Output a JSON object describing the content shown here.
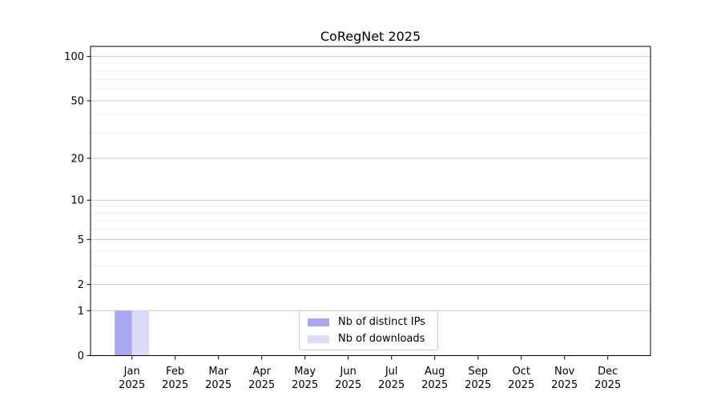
{
  "chart_data": {
    "type": "bar",
    "title": "CoRegNet 2025",
    "categories": [
      {
        "month": "Jan",
        "year": "2025"
      },
      {
        "month": "Feb",
        "year": "2025"
      },
      {
        "month": "Mar",
        "year": "2025"
      },
      {
        "month": "Apr",
        "year": "2025"
      },
      {
        "month": "May",
        "year": "2025"
      },
      {
        "month": "Jun",
        "year": "2025"
      },
      {
        "month": "Jul",
        "year": "2025"
      },
      {
        "month": "Aug",
        "year": "2025"
      },
      {
        "month": "Sep",
        "year": "2025"
      },
      {
        "month": "Oct",
        "year": "2025"
      },
      {
        "month": "Nov",
        "year": "2025"
      },
      {
        "month": "Dec",
        "year": "2025"
      }
    ],
    "series": [
      {
        "name": "Nb of distinct IPs",
        "color": "#a8a8f0",
        "values": [
          1,
          0,
          0,
          0,
          0,
          0,
          0,
          0,
          0,
          0,
          0,
          0
        ]
      },
      {
        "name": "Nb of downloads",
        "color": "#dcdcf8",
        "values": [
          1,
          0,
          0,
          0,
          0,
          0,
          0,
          0,
          0,
          0,
          0,
          0
        ]
      }
    ],
    "y_axis": {
      "scale": "log10(1+y)",
      "major_ticks": [
        0,
        1,
        2,
        5,
        10,
        20,
        50,
        100
      ],
      "minor_gridlines": [
        3,
        4,
        6,
        7,
        8,
        9,
        30,
        40,
        60,
        70,
        80,
        90
      ],
      "ylim": [
        0,
        117
      ]
    },
    "legend": {
      "position": "inside-bottom-center"
    },
    "grid": true,
    "style": {
      "major_grid_color": "#cccccc",
      "minor_grid_color": "#ebebeb",
      "frame_color": "#000000",
      "text_color": "#000000",
      "background": "#ffffff"
    }
  }
}
